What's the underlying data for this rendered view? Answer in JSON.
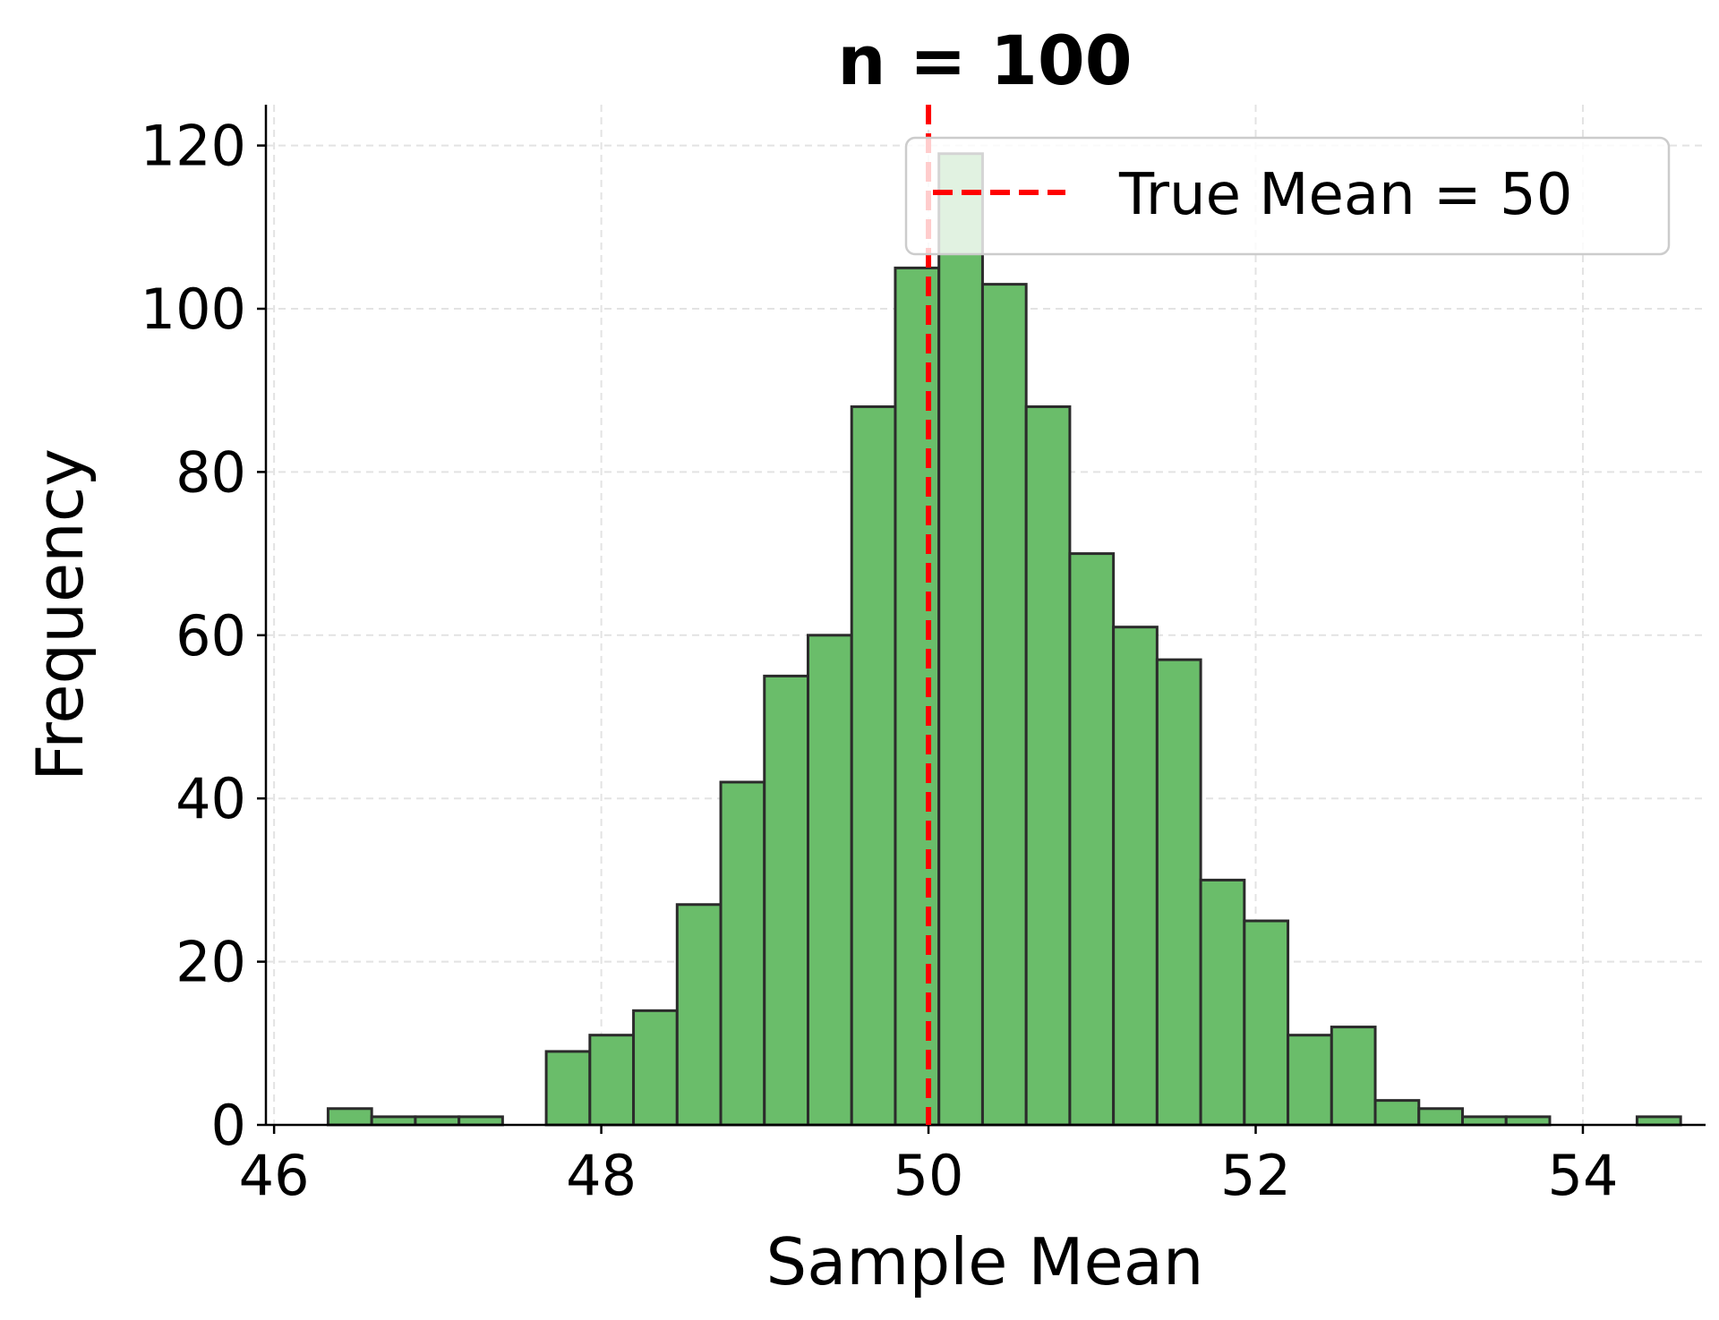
{
  "chart_data": {
    "type": "histogram",
    "title": "n = 100",
    "xlabel": "Sample Mean",
    "ylabel": "Frequency",
    "xlim": [
      45.95,
      54.75
    ],
    "ylim": [
      0,
      125
    ],
    "xticks": [
      46,
      48,
      50,
      52,
      54
    ],
    "xtick_labels": [
      "46",
      "48",
      "50",
      "52",
      "54"
    ],
    "yticks": [
      0,
      20,
      40,
      60,
      80,
      100,
      120
    ],
    "ytick_labels": [
      "0",
      "20",
      "40",
      "60",
      "80",
      "100",
      "120"
    ],
    "grid": true,
    "bins": {
      "start": 46.33,
      "width": 0.2667,
      "counts": [
        2,
        1,
        1,
        1,
        0,
        9,
        11,
        14,
        27,
        42,
        55,
        60,
        88,
        105,
        119,
        103,
        88,
        70,
        61,
        57,
        30,
        25,
        11,
        12,
        3,
        2,
        1,
        1,
        0,
        0,
        1
      ]
    },
    "bar_color": "#6abd6a",
    "edge_color": "#2b2b2b",
    "reference_line": {
      "x": 50,
      "label": "True Mean = 50",
      "color": "#ff0000",
      "style": "dashed"
    },
    "legend": {
      "position": "top-right",
      "entries": [
        "True Mean = 50"
      ]
    }
  }
}
